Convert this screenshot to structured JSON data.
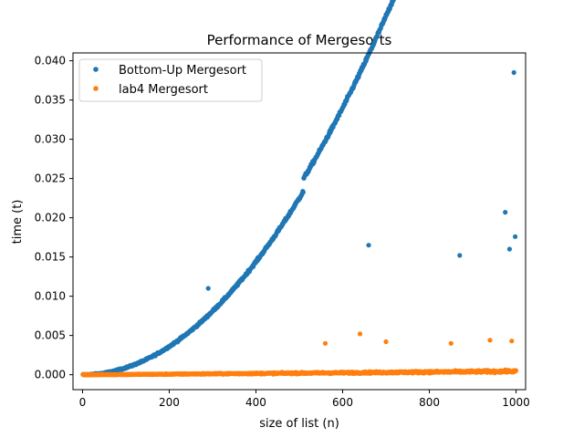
{
  "chart_data": {
    "type": "scatter",
    "title": "Performance of Mergesorts",
    "xlabel": "size of list (n)",
    "ylabel": "time (t)",
    "xlim": [
      -22,
      1022
    ],
    "ylim": [
      -0.0019,
      0.041
    ],
    "xticks": [
      0,
      200,
      400,
      600,
      800,
      1000
    ],
    "xtick_labels": [
      "0",
      "200",
      "400",
      "600",
      "800",
      "1000"
    ],
    "yticks": [
      0.0,
      0.005,
      0.01,
      0.015,
      0.02,
      0.025,
      0.03,
      0.035,
      0.04
    ],
    "ytick_labels": [
      "0.000",
      "0.005",
      "0.010",
      "0.015",
      "0.020",
      "0.025",
      "0.030",
      "0.035",
      "0.040"
    ],
    "legend_position": "top-left",
    "n_points_per_series": 1000,
    "series": [
      {
        "name": "Bottom-Up Mergesort",
        "color": "#1f77b4",
        "trend": {
          "a": 9e-06,
          "p": 2,
          "jump_at": 510,
          "jump_size": 0.0016
        },
        "noise": 0.0004,
        "outliers": [
          [
            290,
            0.011
          ],
          [
            660,
            0.0165
          ],
          [
            870,
            0.0152
          ],
          [
            975,
            0.0207
          ],
          [
            995,
            0.0385
          ],
          [
            998,
            0.0176
          ],
          [
            985,
            0.016
          ]
        ]
      },
      {
        "name": "lab4 Mergesort",
        "color": "#ff7f0e",
        "trend": {
          "a": 2.8e-06,
          "p": 1.1,
          "jump_at": 0,
          "jump_size": 0
        },
        "noise": 0.0002,
        "outliers": [
          [
            640,
            0.0052
          ],
          [
            700,
            0.0042
          ],
          [
            850,
            0.004
          ],
          [
            940,
            0.0044
          ],
          [
            990,
            0.0043
          ],
          [
            560,
            0.004
          ]
        ]
      }
    ]
  }
}
